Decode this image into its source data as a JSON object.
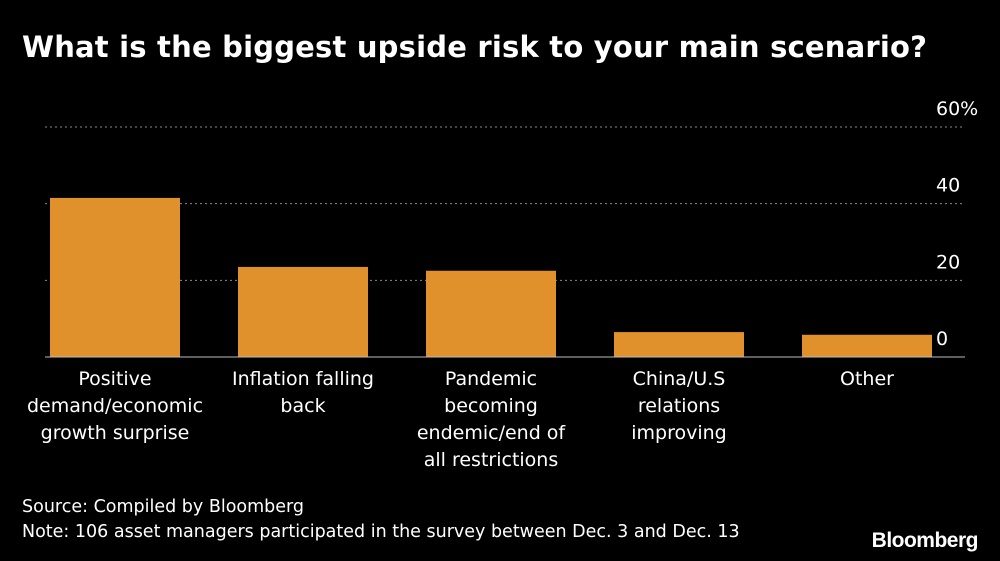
{
  "chart_data": {
    "type": "bar",
    "title": "What is the biggest upside risk to your main scenario?",
    "categories": [
      [
        "Positive",
        "demand/economic",
        "growth surprise"
      ],
      [
        "Inflation falling",
        "back"
      ],
      [
        "Pandemic",
        "becoming",
        "endemic/end of",
        "all restrictions"
      ],
      [
        "China/U.S",
        "relations",
        "improving"
      ],
      [
        "Other"
      ]
    ],
    "values": [
      41.5,
      23.5,
      22.5,
      6.5,
      5.8
    ],
    "ylim": [
      0,
      60
    ],
    "yticks": [
      0,
      20,
      40,
      60
    ],
    "ytick_labels": [
      "0",
      "20",
      "40",
      "60%"
    ],
    "grid": true,
    "bar_color": "#e0912b",
    "xlabel": "",
    "ylabel": ""
  },
  "footer": {
    "source": "Source: Compiled by Bloomberg",
    "note": "Note: 106 asset managers participated in the survey between Dec. 3 and Dec. 13"
  },
  "brand": "Bloomberg"
}
